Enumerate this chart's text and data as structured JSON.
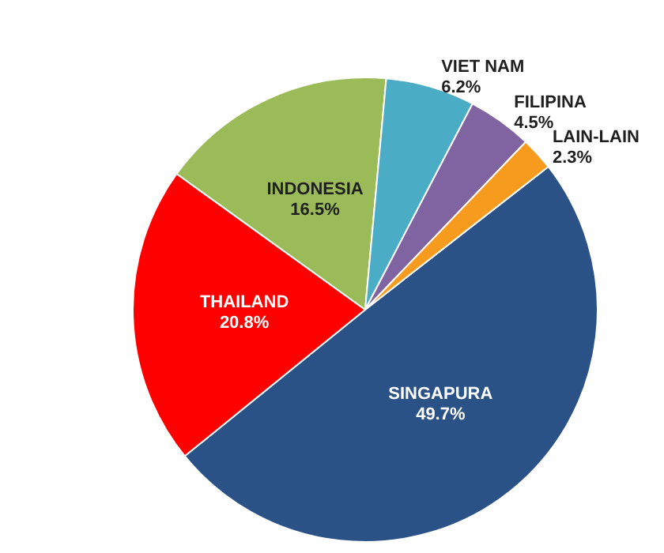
{
  "chart_data": {
    "type": "pie",
    "categories": [
      "SINGAPURA",
      "THAILAND",
      "INDONESIA",
      "VIET NAM",
      "FILIPINA",
      "LAIN-LAIN"
    ],
    "values": [
      49.7,
      20.8,
      16.5,
      6.2,
      4.5,
      2.3
    ],
    "colors": [
      "#2b5287",
      "#ff0000",
      "#9bbb59",
      "#4bacc6",
      "#8064a2",
      "#f79b1e"
    ],
    "value_labels": [
      "49.7%",
      "20.8%",
      "16.5%",
      "6.2%",
      "4.5%",
      "2.3%"
    ],
    "legend": false
  }
}
